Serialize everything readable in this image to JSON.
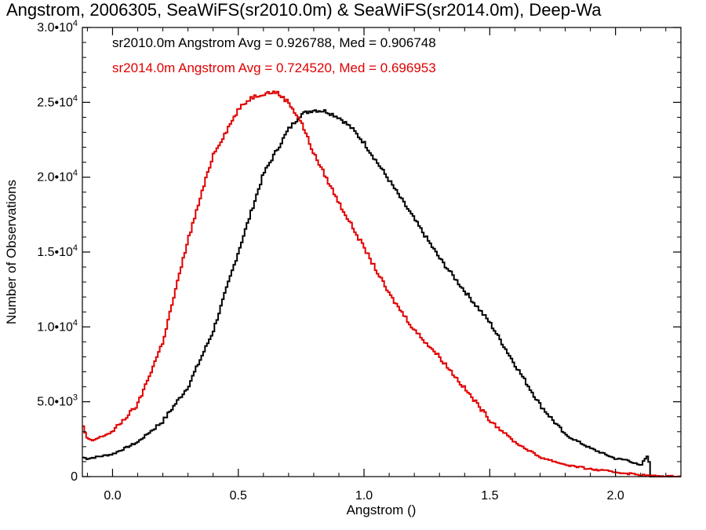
{
  "chart_data": {
    "type": "line",
    "title": "Angstrom, 2006305, SeaWiFS(sr2010.0m) & SeaWiFS(sr2014.0m), Deep-Wa",
    "xlabel": "Angstrom ()",
    "ylabel": "Number of Observations",
    "xlim": [
      -0.12,
      2.26
    ],
    "ylim": [
      0,
      30000
    ],
    "xticks": [
      {
        "value": 0.0,
        "label": "0.0"
      },
      {
        "value": 0.5,
        "label": "0.5"
      },
      {
        "value": 1.0,
        "label": "1.0"
      },
      {
        "value": 1.5,
        "label": "1.5"
      },
      {
        "value": 2.0,
        "label": "2.0"
      }
    ],
    "yticks": [
      {
        "value": 0,
        "base": "0",
        "exp": ""
      },
      {
        "value": 5000,
        "base": "5.0•1O",
        "exp": "3"
      },
      {
        "value": 10000,
        "base": "1.0•1O",
        "exp": "4"
      },
      {
        "value": 15000,
        "base": "1.5•1O",
        "exp": "4"
      },
      {
        "value": 20000,
        "base": "2.0•1O",
        "exp": "4"
      },
      {
        "value": 25000,
        "base": "2.5•1O",
        "exp": "4"
      },
      {
        "value": 30000,
        "base": "3.0•1O",
        "exp": "4"
      }
    ],
    "legend": [
      {
        "text": "sr2010.0m Angstrom Avg = 0.926788, Med = 0.906748",
        "color": "#000000"
      },
      {
        "text": "sr2014.0m Angstrom Avg = 0.724520, Med = 0.696953",
        "color": "#e00000"
      }
    ],
    "legend_position": "top-left",
    "step_histogram": true,
    "series": [
      {
        "color": "#000000",
        "x": [
          -0.12,
          -0.1,
          0.0,
          0.1,
          0.2,
          0.3,
          0.4,
          0.5,
          0.6,
          0.7,
          0.75,
          0.8,
          0.85,
          0.9,
          0.95,
          1.0,
          1.1,
          1.2,
          1.3,
          1.4,
          1.5,
          1.6,
          1.7,
          1.8,
          1.9,
          2.0,
          2.05,
          2.1,
          2.13,
          2.14,
          2.15,
          2.26
        ],
        "y": [
          1300,
          1200,
          1500,
          2300,
          3700,
          6000,
          9700,
          15000,
          20200,
          23200,
          24200,
          24500,
          24400,
          24000,
          23300,
          22300,
          19800,
          17200,
          14600,
          12400,
          10300,
          7500,
          4800,
          2800,
          1900,
          1200,
          1100,
          700,
          1500,
          0,
          0,
          0
        ]
      },
      {
        "color": "#e00000",
        "x": [
          -0.12,
          -0.1,
          -0.08,
          0.0,
          0.1,
          0.2,
          0.3,
          0.4,
          0.5,
          0.55,
          0.6,
          0.65,
          0.7,
          0.75,
          0.8,
          0.9,
          1.0,
          1.1,
          1.2,
          1.3,
          1.4,
          1.5,
          1.6,
          1.7,
          1.8,
          1.9,
          2.0,
          2.1,
          2.15,
          2.26
        ],
        "y": [
          3500,
          2500,
          2400,
          3000,
          4800,
          9000,
          15800,
          21500,
          24500,
          25300,
          25600,
          25700,
          25000,
          23700,
          21600,
          18300,
          15300,
          12200,
          9800,
          8000,
          5900,
          3800,
          2300,
          1300,
          800,
          500,
          300,
          120,
          30,
          0
        ]
      }
    ]
  }
}
